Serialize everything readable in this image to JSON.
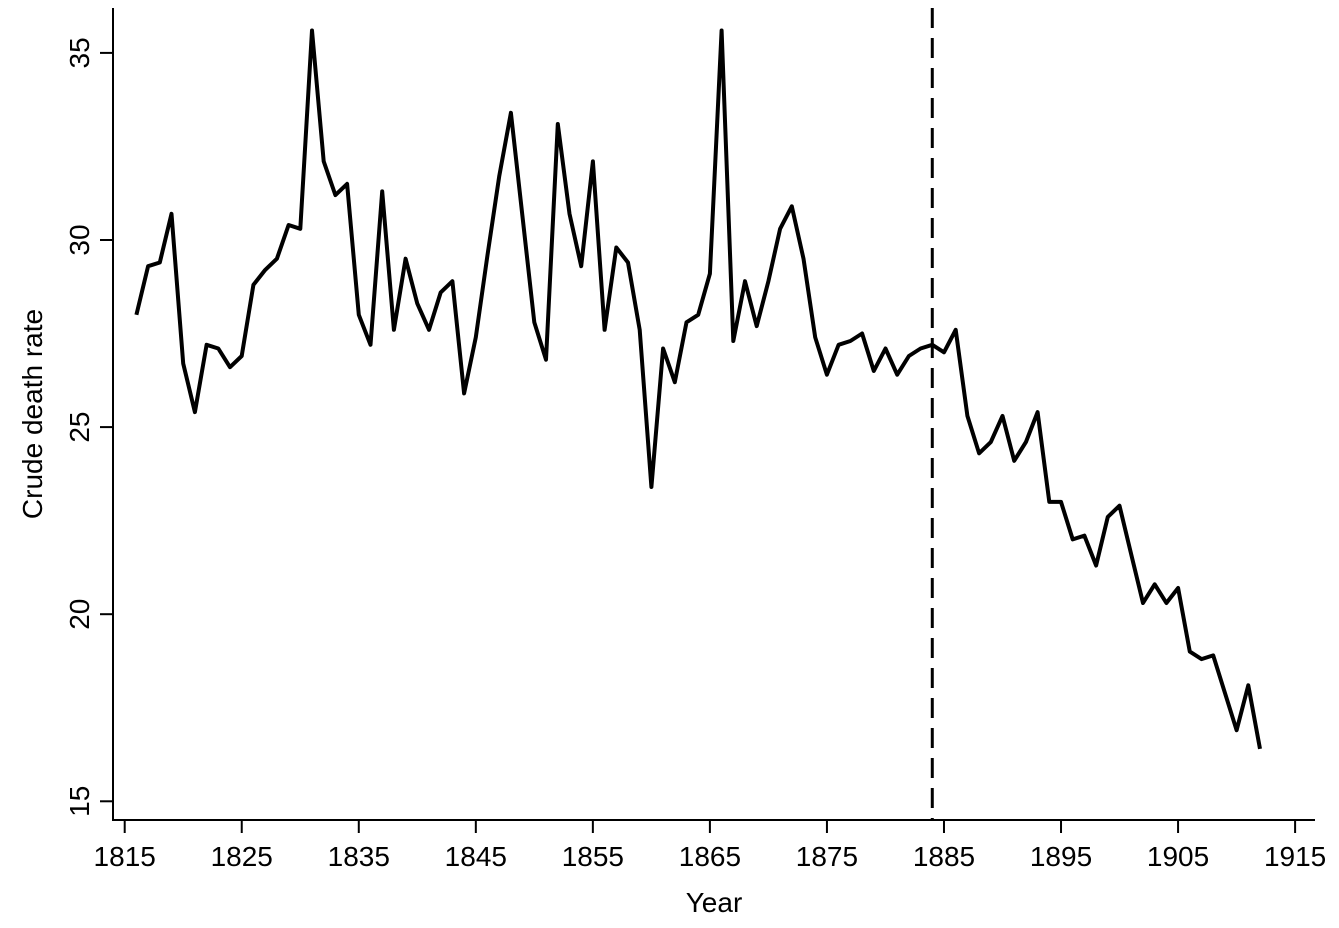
{
  "chart_data": {
    "type": "line",
    "x_label": "Year",
    "y_label": "Crude death rate",
    "x": [
      1816,
      1817,
      1818,
      1819,
      1820,
      1821,
      1822,
      1823,
      1824,
      1825,
      1826,
      1827,
      1828,
      1829,
      1830,
      1831,
      1832,
      1833,
      1834,
      1835,
      1836,
      1837,
      1838,
      1839,
      1840,
      1841,
      1842,
      1843,
      1844,
      1845,
      1846,
      1847,
      1848,
      1849,
      1850,
      1851,
      1852,
      1853,
      1854,
      1855,
      1856,
      1857,
      1858,
      1859,
      1860,
      1861,
      1862,
      1863,
      1864,
      1865,
      1866,
      1867,
      1868,
      1869,
      1870,
      1871,
      1872,
      1873,
      1874,
      1875,
      1876,
      1877,
      1878,
      1879,
      1880,
      1881,
      1882,
      1883,
      1884,
      1885,
      1886,
      1887,
      1888,
      1889,
      1890,
      1891,
      1892,
      1893,
      1894,
      1895,
      1896,
      1897,
      1898,
      1899,
      1900,
      1901,
      1902,
      1903,
      1904,
      1905,
      1906,
      1907,
      1908,
      1909,
      1910,
      1911,
      1912
    ],
    "values": [
      28.0,
      29.3,
      29.4,
      30.7,
      26.7,
      25.4,
      27.2,
      27.1,
      26.6,
      26.9,
      28.8,
      29.2,
      29.5,
      30.4,
      30.3,
      35.6,
      32.1,
      31.2,
      31.5,
      28.0,
      27.2,
      31.3,
      27.6,
      29.5,
      28.3,
      27.6,
      28.6,
      28.9,
      25.9,
      27.4,
      29.6,
      31.7,
      33.4,
      30.6,
      27.8,
      26.8,
      33.1,
      30.7,
      29.3,
      32.1,
      27.6,
      29.8,
      29.4,
      27.6,
      23.4,
      27.1,
      26.2,
      27.8,
      28.0,
      29.1,
      35.6,
      27.3,
      28.9,
      27.7,
      28.9,
      30.3,
      30.9,
      29.5,
      27.4,
      26.4,
      27.2,
      27.3,
      27.5,
      26.5,
      27.1,
      26.4,
      26.9,
      27.1,
      27.2,
      27.0,
      27.6,
      25.3,
      24.3,
      24.6,
      25.3,
      24.1,
      24.6,
      25.4,
      23.0,
      23.0,
      22.0,
      22.1,
      21.3,
      22.6,
      22.9,
      21.6,
      20.3,
      20.8,
      20.3,
      20.7,
      19.0,
      18.8,
      18.9,
      17.9,
      16.9,
      18.1,
      16.4
    ],
    "color": "#000000",
    "vline": 1884,
    "xlim": [
      1814,
      1916.7
    ],
    "ylim": [
      14.5,
      36.2
    ],
    "xticks": [
      1815,
      1825,
      1835,
      1845,
      1855,
      1865,
      1875,
      1885,
      1895,
      1905,
      1915
    ],
    "yticks": [
      15,
      20,
      25,
      30,
      35
    ]
  }
}
